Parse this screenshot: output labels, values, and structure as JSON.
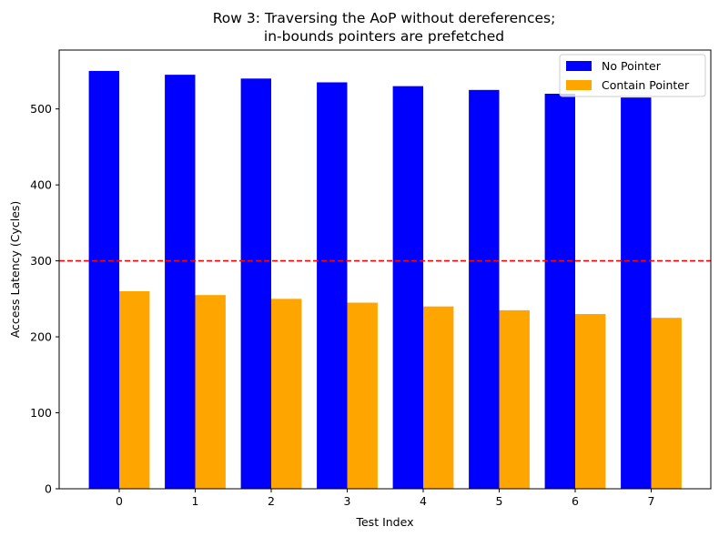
{
  "chart_data": {
    "type": "bar",
    "title_lines": [
      "Row 3: Traversing the AoP without dereferences;",
      "in-bounds pointers are prefetched"
    ],
    "xlabel": "Test Index",
    "ylabel": "Access Latency (Cycles)",
    "categories": [
      "0",
      "1",
      "2",
      "3",
      "4",
      "5",
      "6",
      "7"
    ],
    "series": [
      {
        "name": "No Pointer",
        "color": "#0000ff",
        "values": [
          550,
          545,
          540,
          535,
          530,
          525,
          520,
          515
        ]
      },
      {
        "name": "Contain Pointer",
        "color": "#ffa500",
        "values": [
          260,
          255,
          250,
          245,
          240,
          235,
          230,
          225
        ]
      }
    ],
    "ylim": [
      0,
      577.5
    ],
    "yticks": [
      0,
      100,
      200,
      300,
      400,
      500
    ],
    "threshold": {
      "value": 300,
      "color": "#ff0000",
      "style": "dashed"
    },
    "legend": {
      "position": "top-right",
      "entries": [
        "No Pointer",
        "Contain Pointer"
      ]
    },
    "grid": false
  }
}
